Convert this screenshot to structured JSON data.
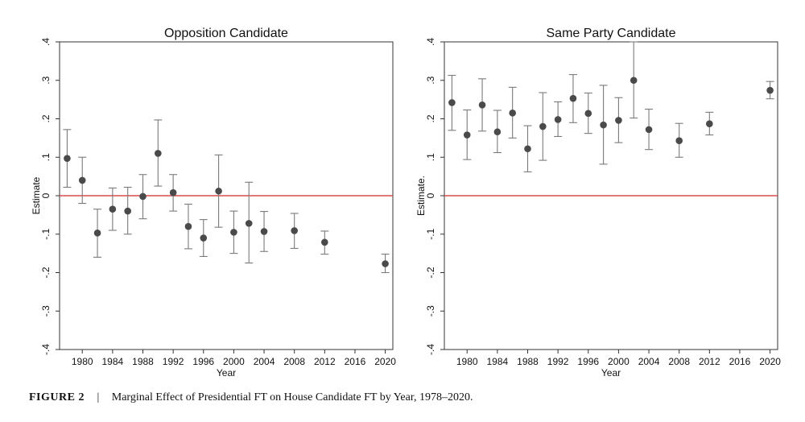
{
  "caption": {
    "label": "FIGURE 2",
    "separator": "|",
    "text": "Marginal Effect of Presidential FT on House Candidate FT by Year, 1978–2020."
  },
  "colors": {
    "point": "#4a4a4a",
    "errorbar": "#7a7a7a",
    "zero_line": "#d94b4b",
    "frame": "#333333"
  },
  "chart_data": [
    {
      "type": "scatter",
      "title": "Opposition Candidate",
      "xlabel": "Year",
      "ylabel": "Estimate",
      "xticks": [
        1980,
        1984,
        1988,
        1992,
        1996,
        2000,
        2004,
        2008,
        2012,
        2016,
        2020
      ],
      "yticks": [
        -0.4,
        -0.3,
        -0.2,
        -0.1,
        0,
        0.1,
        0.2,
        0.3,
        0.4
      ],
      "ytick_labels": [
        "-.4",
        "-.3",
        "-.2",
        "-.1",
        "0",
        ".1",
        ".2",
        ".3",
        ".4"
      ],
      "xlim": [
        1977,
        2021
      ],
      "ylim": [
        -0.4,
        0.4
      ],
      "reference_line": 0,
      "grid": false,
      "legend": "none",
      "series": [
        {
          "points": [
            {
              "x": 1978,
              "y": 0.097,
              "lo": 0.022,
              "hi": 0.172
            },
            {
              "x": 1980,
              "y": 0.04,
              "lo": -0.02,
              "hi": 0.1
            },
            {
              "x": 1982,
              "y": -0.097,
              "lo": -0.16,
              "hi": -0.035
            },
            {
              "x": 1984,
              "y": -0.035,
              "lo": -0.09,
              "hi": 0.02
            },
            {
              "x": 1986,
              "y": -0.04,
              "lo": -0.1,
              "hi": 0.022
            },
            {
              "x": 1988,
              "y": -0.002,
              "lo": -0.06,
              "hi": 0.055
            },
            {
              "x": 1990,
              "y": 0.11,
              "lo": 0.025,
              "hi": 0.197
            },
            {
              "x": 1992,
              "y": 0.008,
              "lo": -0.04,
              "hi": 0.055
            },
            {
              "x": 1994,
              "y": -0.08,
              "lo": -0.138,
              "hi": -0.022
            },
            {
              "x": 1996,
              "y": -0.11,
              "lo": -0.158,
              "hi": -0.062
            },
            {
              "x": 1998,
              "y": 0.012,
              "lo": -0.082,
              "hi": 0.106
            },
            {
              "x": 2000,
              "y": -0.095,
              "lo": -0.15,
              "hi": -0.04
            },
            {
              "x": 2002,
              "y": -0.072,
              "lo": -0.175,
              "hi": 0.035
            },
            {
              "x": 2004,
              "y": -0.093,
              "lo": -0.145,
              "hi": -0.041
            },
            {
              "x": 2008,
              "y": -0.091,
              "lo": -0.137,
              "hi": -0.046
            },
            {
              "x": 2012,
              "y": -0.121,
              "lo": -0.152,
              "hi": -0.092
            },
            {
              "x": 2020,
              "y": -0.177,
              "lo": -0.2,
              "hi": -0.152
            }
          ]
        }
      ]
    },
    {
      "type": "scatter",
      "title": "Same Party Candidate",
      "xlabel": "Year",
      "ylabel": "Estimate.",
      "xticks": [
        1980,
        1984,
        1988,
        1992,
        1996,
        2000,
        2004,
        2008,
        2012,
        2016,
        2020
      ],
      "yticks": [
        -0.4,
        -0.3,
        -0.2,
        -0.1,
        0,
        0.1,
        0.2,
        0.3,
        0.4
      ],
      "ytick_labels": [
        "-.4",
        "-.3",
        "-.2",
        "-.1",
        "0",
        ".1",
        ".2",
        ".3",
        ".4"
      ],
      "xlim": [
        1977,
        2021
      ],
      "ylim": [
        -0.4,
        0.4
      ],
      "reference_line": 0,
      "grid": false,
      "legend": "none",
      "series": [
        {
          "points": [
            {
              "x": 1978,
              "y": 0.242,
              "lo": 0.17,
              "hi": 0.313
            },
            {
              "x": 1980,
              "y": 0.158,
              "lo": 0.094,
              "hi": 0.223
            },
            {
              "x": 1982,
              "y": 0.236,
              "lo": 0.168,
              "hi": 0.304
            },
            {
              "x": 1984,
              "y": 0.166,
              "lo": 0.112,
              "hi": 0.222
            },
            {
              "x": 1986,
              "y": 0.215,
              "lo": 0.15,
              "hi": 0.282
            },
            {
              "x": 1988,
              "y": 0.122,
              "lo": 0.062,
              "hi": 0.182
            },
            {
              "x": 1990,
              "y": 0.18,
              "lo": 0.092,
              "hi": 0.268
            },
            {
              "x": 1992,
              "y": 0.198,
              "lo": 0.154,
              "hi": 0.244
            },
            {
              "x": 1994,
              "y": 0.253,
              "lo": 0.19,
              "hi": 0.315
            },
            {
              "x": 1996,
              "y": 0.214,
              "lo": 0.162,
              "hi": 0.267
            },
            {
              "x": 1998,
              "y": 0.184,
              "lo": 0.082,
              "hi": 0.287
            },
            {
              "x": 2000,
              "y": 0.196,
              "lo": 0.138,
              "hi": 0.255
            },
            {
              "x": 2002,
              "y": 0.3,
              "lo": 0.202,
              "hi": 0.4
            },
            {
              "x": 2004,
              "y": 0.172,
              "lo": 0.12,
              "hi": 0.225
            },
            {
              "x": 2008,
              "y": 0.143,
              "lo": 0.1,
              "hi": 0.188
            },
            {
              "x": 2012,
              "y": 0.187,
              "lo": 0.158,
              "hi": 0.217
            },
            {
              "x": 2020,
              "y": 0.274,
              "lo": 0.252,
              "hi": 0.297
            }
          ]
        }
      ]
    }
  ]
}
